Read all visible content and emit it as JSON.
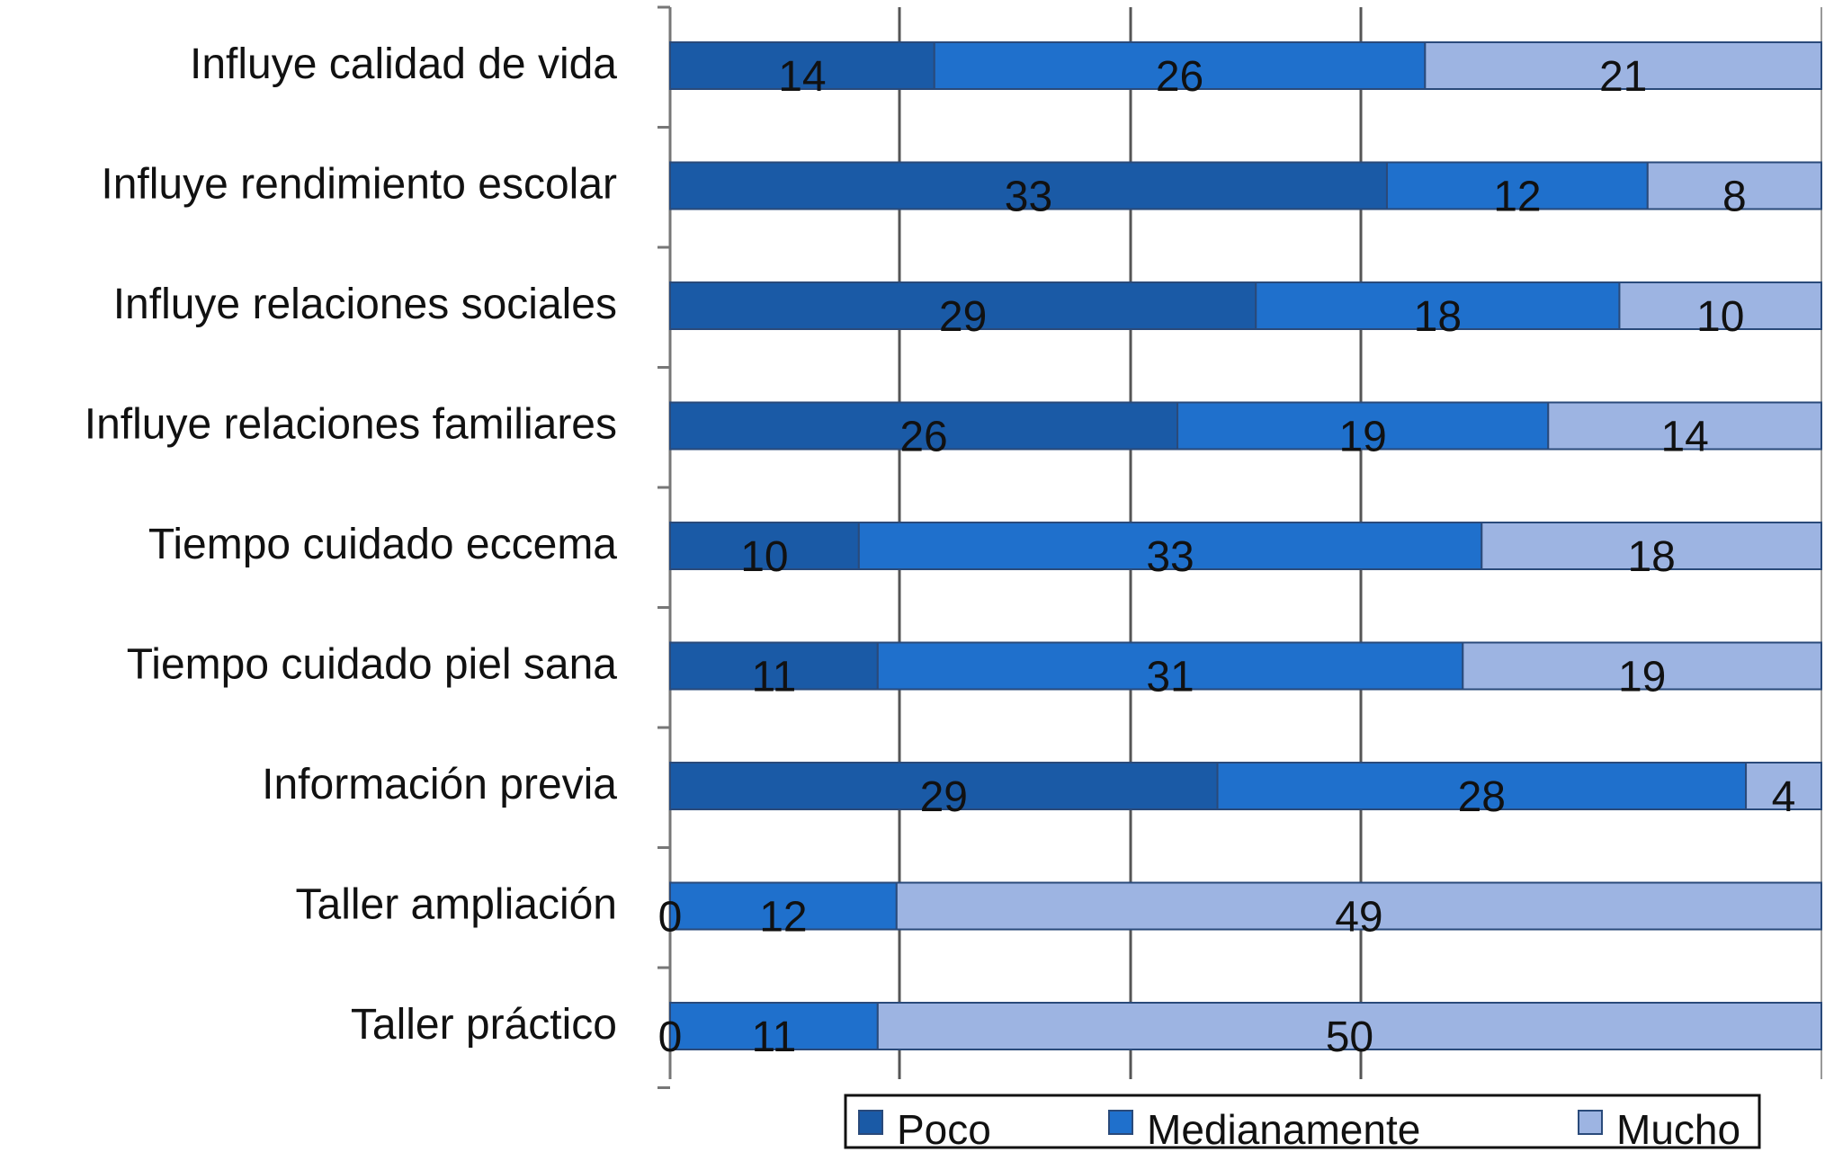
{
  "chart_data": {
    "type": "bar",
    "orientation": "horizontal",
    "stacked": "percent",
    "categories": [
      "Influye calidad de vida",
      "Influye rendimiento escolar",
      "Influye relaciones sociales",
      "Influye relaciones familiares",
      "Tiempo cuidado eccema",
      "Tiempo cuidado piel sana",
      "Información previa",
      "Taller ampliación",
      "Taller práctico"
    ],
    "series": [
      {
        "name": "Poco",
        "color": "#1a5aa6",
        "values": [
          14,
          33,
          29,
          26,
          10,
          11,
          29,
          0,
          0
        ]
      },
      {
        "name": "Medianamente",
        "color": "#1f70cc",
        "values": [
          26,
          12,
          18,
          19,
          33,
          31,
          28,
          12,
          11
        ]
      },
      {
        "name": "Mucho",
        "color": "#9db4e2",
        "values": [
          21,
          8,
          10,
          14,
          18,
          19,
          4,
          49,
          50
        ]
      }
    ],
    "grid": true,
    "legend": "bottom-right"
  }
}
